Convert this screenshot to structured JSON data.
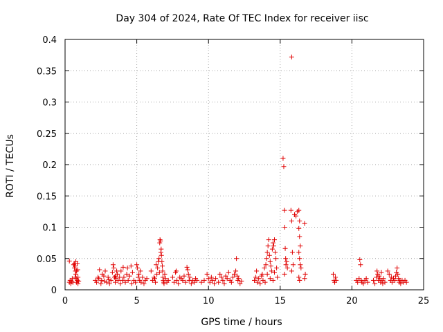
{
  "chart_data": {
    "type": "scatter",
    "title": "Day 304 of 2024, Rate Of TEC Index for receiver iisc",
    "xlabel": "GPS time / hours",
    "ylabel": "ROTI / TECUs",
    "xlim": [
      0,
      25
    ],
    "ylim": [
      0,
      0.4
    ],
    "xticks": [
      0,
      5,
      10,
      15,
      20,
      25
    ],
    "xtick_labels": [
      "0",
      "5",
      "10",
      "15",
      "20",
      "25"
    ],
    "yticks": [
      0,
      0.05,
      0.1,
      0.15,
      0.2,
      0.25,
      0.3,
      0.35,
      0.4
    ],
    "ytick_labels": [
      "0",
      "0.05",
      "0.1",
      "0.15",
      "0.2",
      "0.25",
      "0.3",
      "0.35",
      "0.4"
    ],
    "grid": true,
    "marker": "+",
    "color": "#e00000",
    "series": [
      {
        "name": "iisc",
        "points": [
          [
            0.3,
            0.046
          ],
          [
            0.3,
            0.012
          ],
          [
            0.35,
            0.015
          ],
          [
            0.4,
            0.01
          ],
          [
            0.45,
            0.013
          ],
          [
            0.5,
            0.018
          ],
          [
            0.55,
            0.012
          ],
          [
            0.6,
            0.04
          ],
          [
            0.65,
            0.035
          ],
          [
            0.65,
            0.042
          ],
          [
            0.7,
            0.038
          ],
          [
            0.7,
            0.02
          ],
          [
            0.75,
            0.025
          ],
          [
            0.75,
            0.045
          ],
          [
            0.8,
            0.03
          ],
          [
            0.8,
            0.012
          ],
          [
            0.85,
            0.042
          ],
          [
            0.85,
            0.015
          ],
          [
            0.9,
            0.02
          ],
          [
            0.9,
            0.01
          ],
          [
            0.95,
            0.014
          ],
          [
            0.72,
            0.03
          ],
          [
            0.78,
            0.018
          ],
          [
            0.88,
            0.032
          ],
          [
            2.1,
            0.015
          ],
          [
            2.2,
            0.012
          ],
          [
            2.3,
            0.02
          ],
          [
            2.35,
            0.018
          ],
          [
            2.4,
            0.032
          ],
          [
            2.5,
            0.01
          ],
          [
            2.55,
            0.015
          ],
          [
            2.6,
            0.025
          ],
          [
            2.7,
            0.022
          ],
          [
            2.75,
            0.014
          ],
          [
            2.8,
            0.03
          ],
          [
            2.9,
            0.012
          ],
          [
            3.0,
            0.02
          ],
          [
            3.05,
            0.016
          ],
          [
            3.1,
            0.01
          ],
          [
            3.2,
            0.015
          ],
          [
            3.3,
            0.028
          ],
          [
            3.35,
            0.04
          ],
          [
            3.4,
            0.035
          ],
          [
            3.45,
            0.02
          ],
          [
            3.5,
            0.012
          ],
          [
            3.5,
            0.022
          ],
          [
            3.55,
            0.018
          ],
          [
            3.6,
            0.03
          ],
          [
            3.65,
            0.025
          ],
          [
            3.7,
            0.015
          ],
          [
            3.8,
            0.02
          ],
          [
            3.85,
            0.01
          ],
          [
            3.9,
            0.03
          ],
          [
            4.0,
            0.015
          ],
          [
            4.05,
            0.036
          ],
          [
            4.1,
            0.02
          ],
          [
            4.2,
            0.012
          ],
          [
            4.3,
            0.025
          ],
          [
            4.35,
            0.035
          ],
          [
            4.4,
            0.015
          ],
          [
            4.5,
            0.022
          ],
          [
            4.6,
            0.038
          ],
          [
            4.65,
            0.01
          ],
          [
            4.7,
            0.028
          ],
          [
            4.8,
            0.015
          ],
          [
            4.9,
            0.012
          ],
          [
            5.0,
            0.04
          ],
          [
            5.05,
            0.035
          ],
          [
            5.1,
            0.02
          ],
          [
            5.15,
            0.025
          ],
          [
            5.2,
            0.015
          ],
          [
            5.25,
            0.03
          ],
          [
            5.3,
            0.012
          ],
          [
            5.4,
            0.02
          ],
          [
            5.5,
            0.01
          ],
          [
            5.6,
            0.015
          ],
          [
            5.7,
            0.018
          ],
          [
            6.0,
            0.03
          ],
          [
            6.1,
            0.015
          ],
          [
            6.2,
            0.02
          ],
          [
            6.3,
            0.012
          ],
          [
            6.35,
            0.04
          ],
          [
            6.4,
            0.025
          ],
          [
            6.45,
            0.035
          ],
          [
            6.5,
            0.045
          ],
          [
            6.55,
            0.05
          ],
          [
            6.6,
            0.075
          ],
          [
            6.62,
            0.08
          ],
          [
            6.65,
            0.078
          ],
          [
            6.68,
            0.06
          ],
          [
            6.7,
            0.065
          ],
          [
            6.72,
            0.055
          ],
          [
            6.75,
            0.045
          ],
          [
            6.78,
            0.038
          ],
          [
            6.8,
            0.03
          ],
          [
            6.82,
            0.02
          ],
          [
            6.85,
            0.015
          ],
          [
            6.9,
            0.01
          ],
          [
            6.95,
            0.025
          ],
          [
            7.0,
            0.018
          ],
          [
            7.1,
            0.012
          ],
          [
            7.2,
            0.015
          ],
          [
            6.25,
            0.018
          ],
          [
            6.58,
            0.028
          ],
          [
            6.88,
            0.012
          ],
          [
            7.5,
            0.02
          ],
          [
            7.6,
            0.012
          ],
          [
            7.7,
            0.028
          ],
          [
            7.75,
            0.03
          ],
          [
            7.8,
            0.015
          ],
          [
            7.9,
            0.01
          ],
          [
            8.0,
            0.02
          ],
          [
            8.1,
            0.018
          ],
          [
            8.2,
            0.015
          ],
          [
            8.3,
            0.022
          ],
          [
            8.4,
            0.012
          ],
          [
            8.5,
            0.036
          ],
          [
            8.55,
            0.032
          ],
          [
            8.6,
            0.025
          ],
          [
            8.65,
            0.015
          ],
          [
            8.7,
            0.02
          ],
          [
            8.8,
            0.01
          ],
          [
            8.9,
            0.015
          ],
          [
            9.0,
            0.012
          ],
          [
            9.1,
            0.018
          ],
          [
            9.2,
            0.015
          ],
          [
            9.5,
            0.012
          ],
          [
            9.7,
            0.015
          ],
          [
            9.9,
            0.025
          ],
          [
            10.0,
            0.018
          ],
          [
            10.1,
            0.012
          ],
          [
            10.2,
            0.02
          ],
          [
            10.3,
            0.015
          ],
          [
            10.4,
            0.01
          ],
          [
            10.5,
            0.018
          ],
          [
            10.7,
            0.012
          ],
          [
            10.8,
            0.025
          ],
          [
            10.9,
            0.02
          ],
          [
            11.0,
            0.015
          ],
          [
            11.1,
            0.01
          ],
          [
            11.2,
            0.022
          ],
          [
            11.3,
            0.018
          ],
          [
            11.4,
            0.028
          ],
          [
            11.5,
            0.015
          ],
          [
            11.6,
            0.012
          ],
          [
            11.7,
            0.02
          ],
          [
            11.8,
            0.025
          ],
          [
            11.9,
            0.03
          ],
          [
            11.95,
            0.05
          ],
          [
            12.0,
            0.022
          ],
          [
            12.05,
            0.015
          ],
          [
            12.1,
            0.018
          ],
          [
            12.2,
            0.01
          ],
          [
            12.3,
            0.014
          ],
          [
            13.2,
            0.015
          ],
          [
            13.3,
            0.02
          ],
          [
            13.35,
            0.03
          ],
          [
            13.4,
            0.012
          ],
          [
            13.5,
            0.018
          ],
          [
            13.6,
            0.01
          ],
          [
            13.7,
            0.022
          ],
          [
            13.75,
            0.025
          ],
          [
            13.8,
            0.015
          ],
          [
            13.9,
            0.035
          ],
          [
            14.0,
            0.04
          ],
          [
            14.05,
            0.05
          ],
          [
            14.1,
            0.06
          ],
          [
            14.15,
            0.07
          ],
          [
            14.2,
            0.08
          ],
          [
            14.25,
            0.055
          ],
          [
            14.3,
            0.045
          ],
          [
            14.35,
            0.038
          ],
          [
            14.4,
            0.03
          ],
          [
            14.45,
            0.065
          ],
          [
            14.5,
            0.075
          ],
          [
            14.55,
            0.07
          ],
          [
            14.6,
            0.08
          ],
          [
            14.65,
            0.06
          ],
          [
            14.7,
            0.05
          ],
          [
            14.75,
            0.035
          ],
          [
            14.8,
            0.02
          ],
          [
            14.1,
            0.025
          ],
          [
            14.3,
            0.018
          ],
          [
            14.5,
            0.015
          ],
          [
            13.95,
            0.012
          ],
          [
            14.6,
            0.028
          ],
          [
            15.2,
            0.21
          ],
          [
            15.25,
            0.197
          ],
          [
            15.3,
            0.127
          ],
          [
            15.32,
            0.1
          ],
          [
            15.35,
            0.066
          ],
          [
            15.38,
            0.05
          ],
          [
            15.4,
            0.04
          ],
          [
            15.45,
            0.045
          ],
          [
            15.5,
            0.035
          ],
          [
            15.3,
            0.025
          ],
          [
            15.8,
            0.372
          ],
          [
            15.75,
            0.127
          ],
          [
            15.8,
            0.11
          ],
          [
            15.85,
            0.06
          ],
          [
            15.9,
            0.04
          ],
          [
            15.8,
            0.03
          ],
          [
            16.0,
            0.12
          ],
          [
            16.1,
            0.118
          ],
          [
            16.2,
            0.125
          ],
          [
            16.3,
            0.127
          ],
          [
            16.35,
            0.11
          ],
          [
            16.3,
            0.098
          ],
          [
            16.35,
            0.085
          ],
          [
            16.4,
            0.07
          ],
          [
            16.3,
            0.06
          ],
          [
            16.35,
            0.05
          ],
          [
            16.4,
            0.04
          ],
          [
            16.45,
            0.035
          ],
          [
            16.3,
            0.02
          ],
          [
            16.35,
            0.015
          ],
          [
            16.7,
            0.106
          ],
          [
            16.75,
            0.025
          ],
          [
            16.7,
            0.018
          ],
          [
            18.7,
            0.025
          ],
          [
            18.75,
            0.015
          ],
          [
            18.8,
            0.012
          ],
          [
            18.85,
            0.02
          ],
          [
            18.9,
            0.015
          ],
          [
            20.3,
            0.015
          ],
          [
            20.4,
            0.012
          ],
          [
            20.5,
            0.018
          ],
          [
            20.55,
            0.048
          ],
          [
            20.6,
            0.04
          ],
          [
            20.65,
            0.015
          ],
          [
            20.7,
            0.012
          ],
          [
            20.8,
            0.01
          ],
          [
            20.9,
            0.015
          ],
          [
            21.0,
            0.018
          ],
          [
            21.1,
            0.012
          ],
          [
            21.5,
            0.015
          ],
          [
            21.6,
            0.01
          ],
          [
            21.7,
            0.02
          ],
          [
            21.75,
            0.03
          ],
          [
            21.8,
            0.025
          ],
          [
            21.85,
            0.015
          ],
          [
            21.9,
            0.022
          ],
          [
            21.95,
            0.018
          ],
          [
            22.0,
            0.012
          ],
          [
            22.05,
            0.028
          ],
          [
            22.1,
            0.015
          ],
          [
            22.15,
            0.01
          ],
          [
            22.2,
            0.018
          ],
          [
            22.3,
            0.012
          ],
          [
            22.5,
            0.03
          ],
          [
            22.6,
            0.025
          ],
          [
            22.7,
            0.015
          ],
          [
            22.75,
            0.02
          ],
          [
            22.8,
            0.012
          ],
          [
            22.9,
            0.018
          ],
          [
            23.0,
            0.015
          ],
          [
            23.05,
            0.022
          ],
          [
            23.1,
            0.028
          ],
          [
            23.15,
            0.035
          ],
          [
            23.2,
            0.025
          ],
          [
            23.25,
            0.018
          ],
          [
            23.3,
            0.012
          ],
          [
            23.35,
            0.015
          ],
          [
            23.4,
            0.01
          ],
          [
            23.5,
            0.015
          ],
          [
            23.6,
            0.012
          ],
          [
            23.7,
            0.015
          ],
          [
            23.8,
            0.012
          ]
        ]
      }
    ]
  }
}
